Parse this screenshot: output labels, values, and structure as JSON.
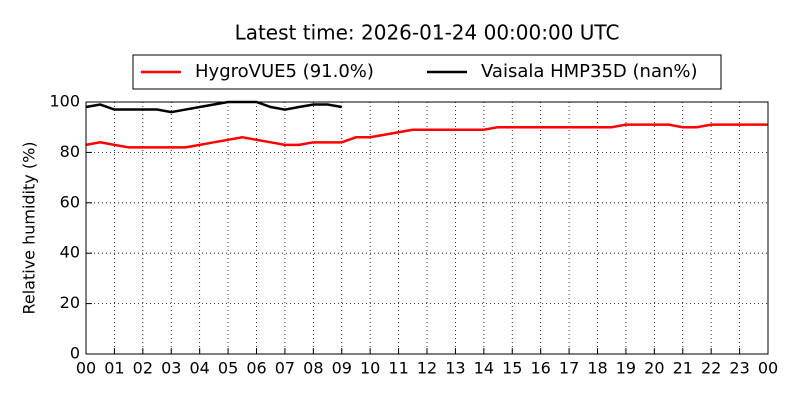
{
  "chart_data": {
    "type": "line",
    "title": "Latest time: 2026-01-24 00:00:00 UTC",
    "y_label": "Relative humidity (%)",
    "x": [
      0,
      0.5,
      1,
      1.5,
      2,
      2.5,
      3,
      3.5,
      4,
      4.5,
      5,
      5.5,
      6,
      6.5,
      7,
      7.5,
      8,
      8.5,
      9,
      9.5,
      10,
      10.5,
      11,
      11.5,
      12,
      12.5,
      13,
      13.5,
      14,
      14.5,
      15,
      15.5,
      16,
      16.5,
      17,
      17.5,
      18,
      18.5,
      19,
      19.5,
      20,
      20.5,
      21,
      21.5,
      22,
      22.5,
      23,
      23.5,
      24
    ],
    "series": [
      {
        "name": "HygroVUE5 (91.0%)",
        "color": "#ff0000",
        "values": [
          83,
          84,
          83,
          82,
          82,
          82,
          82,
          82,
          83,
          84,
          85,
          86,
          85,
          84,
          83,
          83,
          84,
          84,
          84,
          86,
          86,
          87,
          88,
          89,
          89,
          89,
          89,
          89,
          89,
          90,
          90,
          90,
          90,
          90,
          90,
          90,
          90,
          90,
          91,
          91,
          91,
          91,
          90,
          90,
          91,
          91,
          91,
          91,
          91
        ]
      },
      {
        "name": "Vaisala HMP35D (nan%)",
        "color": "#000000",
        "values": [
          98,
          99,
          97,
          97,
          97,
          97,
          96,
          97,
          98,
          99,
          100,
          100,
          100,
          98,
          97,
          98,
          99,
          99,
          98,
          null,
          null,
          null,
          null,
          null,
          null,
          null,
          null,
          null,
          null,
          null,
          null,
          null,
          null,
          null,
          null,
          null,
          null,
          null,
          null,
          null,
          null,
          null,
          null,
          null,
          null,
          null,
          null,
          null,
          null
        ]
      }
    ],
    "xlim": [
      0,
      24
    ],
    "xticks": [
      {
        "value": 0,
        "label": "00"
      },
      {
        "value": 1,
        "label": "01"
      },
      {
        "value": 2,
        "label": "02"
      },
      {
        "value": 3,
        "label": "03"
      },
      {
        "value": 4,
        "label": "04"
      },
      {
        "value": 5,
        "label": "05"
      },
      {
        "value": 6,
        "label": "06"
      },
      {
        "value": 7,
        "label": "07"
      },
      {
        "value": 8,
        "label": "08"
      },
      {
        "value": 9,
        "label": "09"
      },
      10,
      11,
      12,
      13,
      14,
      15,
      16,
      17,
      18,
      19,
      20,
      21,
      22,
      23,
      {
        "value": 24,
        "label": "00"
      }
    ],
    "ylim": [
      0,
      100
    ],
    "yticks": [
      0,
      20,
      40,
      60,
      80,
      100
    ],
    "grid": true,
    "legend": "top"
  }
}
